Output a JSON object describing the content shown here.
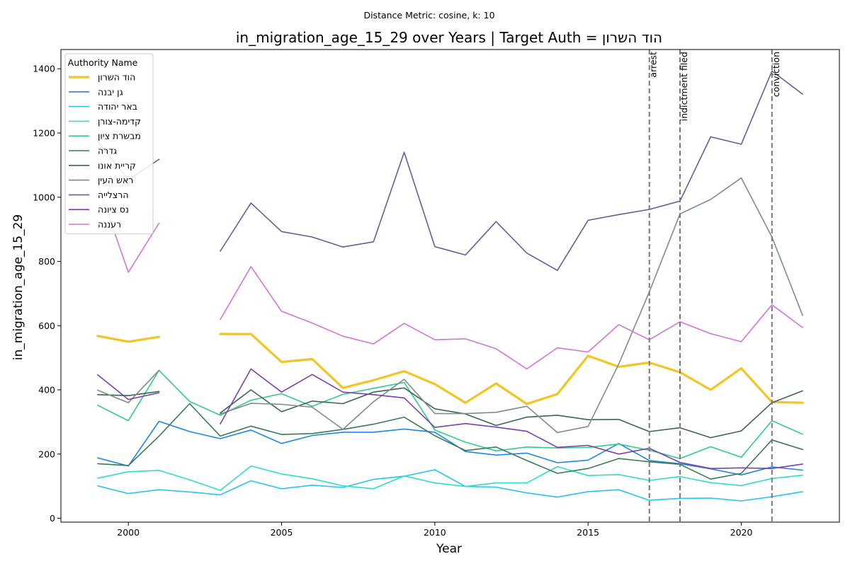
{
  "chart_data": {
    "type": "line",
    "suptitle": "Distance Metric: cosine, k: 10",
    "title": "in_migration_age_15_29 over Years | Target Auth = הוד השרון",
    "xlabel": "Year",
    "ylabel": "in_migration_age_15_29",
    "xlim": [
      1997.8,
      2023.2
    ],
    "ylim": [
      -12,
      1460
    ],
    "xticks": [
      2000,
      2005,
      2010,
      2015,
      2020
    ],
    "yticks": [
      0,
      200,
      400,
      600,
      800,
      1000,
      1200,
      1400
    ],
    "grid": false,
    "legend": {
      "title": "Authority Name",
      "placement": "top-left"
    },
    "x": [
      1999,
      2000,
      2001,
      2002,
      2003,
      2004,
      2005,
      2006,
      2007,
      2008,
      2009,
      2010,
      2011,
      2012,
      2013,
      2014,
      2015,
      2016,
      2017,
      2018,
      2019,
      2020,
      2021,
      2022
    ],
    "events": [
      {
        "x": 2017,
        "label": "arrest"
      },
      {
        "x": 2018,
        "label": "indictment filed"
      },
      {
        "x": 2021,
        "label": "conviction"
      }
    ],
    "series": [
      {
        "name": "הוד השרון",
        "color": "#f2c522",
        "width": 3.2,
        "values": [
          568,
          550,
          565,
          null,
          574,
          574,
          487,
          496,
          406,
          430,
          458,
          418,
          360,
          420,
          356,
          387,
          506,
          472,
          485,
          455,
          400,
          467,
          362,
          360
        ]
      },
      {
        "name": "גן יבנה",
        "color": "#1e87e5",
        "width": 1.6,
        "values": [
          188,
          163,
          302,
          270,
          248,
          275,
          233,
          258,
          268,
          268,
          278,
          268,
          208,
          197,
          203,
          173,
          181,
          233,
          180,
          170,
          154,
          135,
          160,
          150
        ]
      },
      {
        "name": "באר יהודה",
        "color": "#26c5ee",
        "width": 1.6,
        "values": [
          101,
          77,
          89,
          82,
          73,
          117,
          92,
          103,
          96,
          121,
          131,
          151,
          99,
          97,
          79,
          66,
          83,
          89,
          56,
          62,
          63,
          54,
          67,
          83
        ]
      },
      {
        "name": "קדימה-צורן",
        "color": "#2ddec8",
        "width": 1.6,
        "values": [
          125,
          145,
          149,
          120,
          87,
          163,
          138,
          123,
          101,
          92,
          132,
          110,
          99,
          110,
          110,
          161,
          133,
          136,
          118,
          130,
          111,
          102,
          124,
          134
        ]
      },
      {
        "name": "מבשרת ציון",
        "color": "#30cc8a",
        "width": 1.6,
        "values": [
          352,
          304,
          461,
          364,
          321,
          368,
          388,
          349,
          386,
          405,
          423,
          275,
          237,
          210,
          222,
          219,
          221,
          231,
          212,
          186,
          223,
          190,
          304,
          262
        ]
      },
      {
        "name": "גדרה",
        "color": "#3a7a58",
        "width": 1.6,
        "values": [
          170,
          164,
          256,
          357,
          256,
          287,
          261,
          264,
          277,
          293,
          315,
          257,
          211,
          222,
          180,
          140,
          155,
          186,
          176,
          168,
          122,
          140,
          244,
          214
        ]
      },
      {
        "name": "קריית אונו",
        "color": "#3a6656",
        "width": 1.6,
        "values": [
          385,
          382,
          395,
          null,
          328,
          400,
          332,
          365,
          357,
          393,
          406,
          341,
          325,
          289,
          315,
          321,
          307,
          308,
          270,
          282,
          251,
          272,
          360,
          397
        ]
      },
      {
        "name": "ראש העין",
        "color": "#7f8c86",
        "width": 1.6,
        "values": [
          399,
          360,
          461,
          null,
          325,
          358,
          355,
          346,
          277,
          363,
          433,
          326,
          326,
          330,
          349,
          267,
          286,
          480,
          705,
          948,
          993,
          1060,
          876,
          632
        ]
      },
      {
        "name": "הרצלייה",
        "color": "#625f98",
        "width": 1.6,
        "values": [
          1174,
          1054,
          1118,
          null,
          832,
          982,
          893,
          876,
          845,
          861,
          1140,
          846,
          820,
          924,
          826,
          772,
          928,
          946,
          962,
          988,
          1188,
          1165,
          1393,
          1321
        ]
      },
      {
        "name": "נס ציונה",
        "color": "#7c3fae",
        "width": 1.6,
        "values": [
          447,
          370,
          391,
          null,
          294,
          465,
          393,
          448,
          393,
          385,
          375,
          283,
          295,
          284,
          271,
          221,
          227,
          200,
          218,
          174,
          155,
          157,
          155,
          169
        ]
      },
      {
        "name": "רעננה",
        "color": "#d274d8",
        "width": 1.6,
        "values": [
          1042,
          766,
          919,
          null,
          619,
          784,
          645,
          608,
          567,
          543,
          607,
          556,
          559,
          528,
          465,
          531,
          518,
          603,
          556,
          612,
          575,
          550,
          665,
          594
        ]
      }
    ]
  }
}
